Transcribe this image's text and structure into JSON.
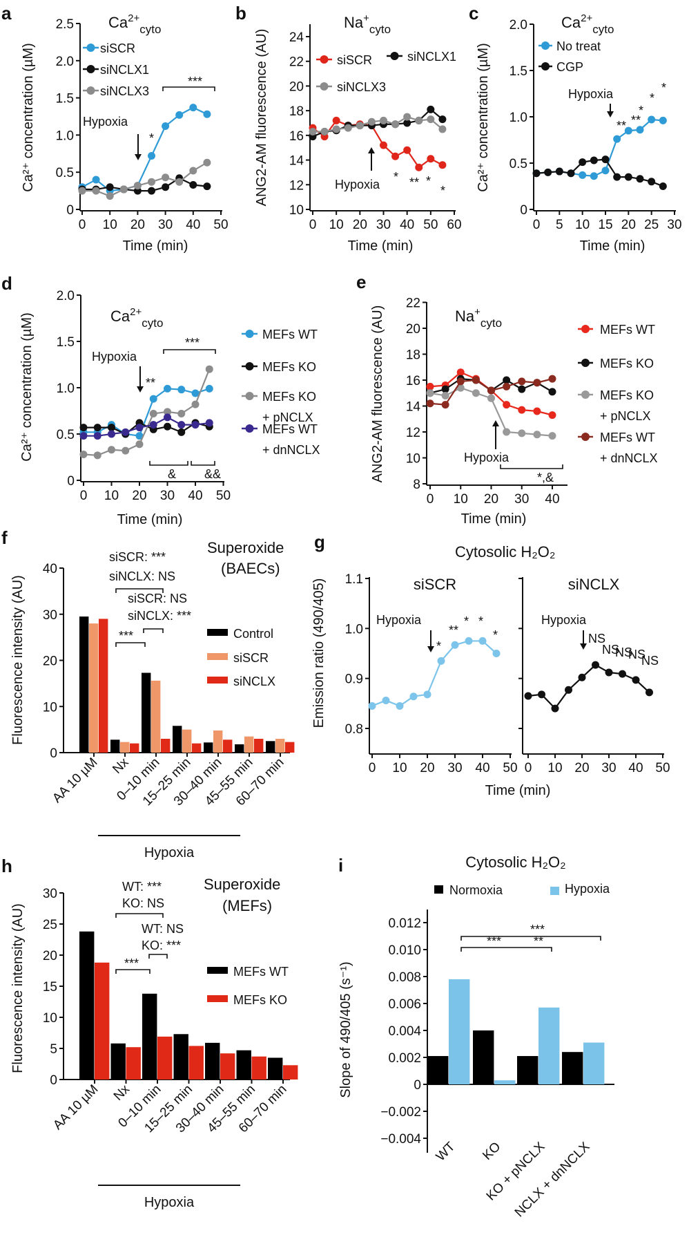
{
  "chart_data": [
    {
      "panel_label": "a",
      "type": "line",
      "title": {
        "base": "Ca",
        "sup": "2+",
        "sub": "cyto"
      },
      "xlabel": "Time (min)",
      "ylabel": "Ca²⁺ concentration (µM)",
      "xlim": [
        0,
        50
      ],
      "ylim": [
        0,
        2.5
      ],
      "xticks": [
        0,
        10,
        20,
        30,
        40,
        50
      ],
      "yticks": [
        0,
        0.5,
        1.0,
        1.5,
        2.0,
        2.5
      ],
      "ytick_labels": [
        "0",
        "0.5",
        "1.0",
        "1.5",
        "2.0",
        "2.5"
      ],
      "x": [
        0,
        5,
        10,
        15,
        20,
        25,
        30,
        35,
        40,
        45
      ],
      "series": [
        {
          "name": "siSCR",
          "color": "#2e9ad6",
          "values": [
            0.3,
            0.4,
            0.25,
            0.27,
            0.32,
            0.72,
            1.12,
            1.27,
            1.37,
            1.28
          ]
        },
        {
          "name": "siNCLX1",
          "color": "#111111",
          "values": [
            0.27,
            0.27,
            0.3,
            0.27,
            0.25,
            0.25,
            0.3,
            0.42,
            0.33,
            0.31
          ]
        },
        {
          "name": "siNCLX3",
          "color": "#8c8c8c",
          "values": [
            0.25,
            0.25,
            0.18,
            0.27,
            0.32,
            0.37,
            0.43,
            0.37,
            0.52,
            0.63
          ]
        }
      ],
      "annotations": [
        "Hypoxia",
        "*",
        "***"
      ]
    },
    {
      "panel_label": "b",
      "type": "line",
      "title": {
        "base": "Na",
        "sup": "+",
        "sub": "cyto"
      },
      "xlabel": "Time (min)",
      "ylabel": "ANG2-AM fluorescence (AU)",
      "xlim": [
        0,
        60
      ],
      "ylim": [
        10,
        24
      ],
      "xticks": [
        0,
        10,
        20,
        30,
        40,
        50,
        60
      ],
      "yticks": [
        10,
        12,
        14,
        16,
        18,
        20,
        22,
        24
      ],
      "ytick_labels": [
        "10",
        "12",
        "14",
        "16",
        "18",
        "20",
        "22",
        "24"
      ],
      "x": [
        0,
        5,
        10,
        15,
        20,
        25,
        30,
        35,
        40,
        45,
        50,
        55
      ],
      "series": [
        {
          "name": "siSCR",
          "color": "#e0261b",
          "values": [
            16.6,
            15.9,
            17.2,
            16.8,
            16.9,
            16.8,
            15.2,
            14.3,
            14.8,
            13.4,
            14.1,
            13.6
          ]
        },
        {
          "name": "siNCLX1",
          "color": "#111111",
          "values": [
            15.9,
            16.3,
            16.4,
            16.8,
            16.8,
            16.8,
            16.9,
            16.9,
            17.0,
            17.2,
            18.1,
            17.3
          ]
        },
        {
          "name": "siNCLX3",
          "color": "#8c8c8c",
          "values": [
            16.3,
            16.3,
            16.5,
            16.6,
            16.8,
            17.1,
            17.2,
            16.9,
            17.5,
            17.2,
            17.3,
            16.5
          ]
        }
      ],
      "annotations": [
        "Hypoxia",
        "*",
        "**",
        "*",
        "*"
      ]
    },
    {
      "panel_label": "c",
      "type": "line",
      "title": {
        "base": "Ca",
        "sup": "2+",
        "sub": "cyto"
      },
      "xlabel": "Time (min)",
      "ylabel": "Ca²⁺ concentration (µM)",
      "xlim": [
        0,
        30
      ],
      "ylim": [
        0,
        2.0
      ],
      "xticks": [
        0,
        5,
        10,
        15,
        20,
        25,
        30
      ],
      "yticks": [
        0,
        0.5,
        1.0,
        1.5,
        2.0
      ],
      "ytick_labels": [
        "0",
        "0.5",
        "1.0",
        "1.5",
        "2.0"
      ],
      "x": [
        0,
        2.5,
        5,
        7.5,
        10,
        12.5,
        15,
        17.5,
        20,
        22.5,
        25,
        27.5
      ],
      "series": [
        {
          "name": "No treat",
          "color": "#2e9ad6",
          "values": [
            0.39,
            0.4,
            0.41,
            0.39,
            0.37,
            0.36,
            0.42,
            0.76,
            0.85,
            0.86,
            0.97,
            0.96
          ]
        },
        {
          "name": "CGP",
          "color": "#111111",
          "values": [
            0.39,
            0.4,
            0.41,
            0.39,
            0.51,
            0.53,
            0.54,
            0.35,
            0.35,
            0.33,
            0.3,
            0.25
          ]
        }
      ],
      "annotations": [
        "Hypoxia",
        "**",
        "**",
        "*",
        "*",
        "*"
      ]
    },
    {
      "panel_label": "d",
      "type": "line",
      "title": {
        "base": "Ca",
        "sup": "2+",
        "sub": "cyto"
      },
      "xlabel": "Time (min)",
      "ylabel": "Ca²⁺ concentration (µM)",
      "xlim": [
        0,
        50
      ],
      "ylim": [
        0,
        2.0
      ],
      "xticks": [
        0,
        10,
        20,
        30,
        40,
        50
      ],
      "yticks": [
        0,
        0.5,
        1.0,
        1.5,
        2.0
      ],
      "ytick_labels": [
        "0",
        "0.5",
        "1.0",
        "1.5",
        "2.0"
      ],
      "x": [
        0,
        5,
        10,
        15,
        20,
        25,
        30,
        35,
        40,
        45
      ],
      "series": [
        {
          "name": "MEFs WT",
          "color": "#2e9ad6",
          "values": [
            0.52,
            0.52,
            0.6,
            0.5,
            0.48,
            0.88,
            0.99,
            0.98,
            0.94,
            0.99
          ]
        },
        {
          "name": "MEFs KO",
          "color": "#111111",
          "values": [
            0.57,
            0.57,
            0.57,
            0.5,
            0.62,
            0.55,
            0.58,
            0.52,
            0.62,
            0.58
          ]
        },
        {
          "name": "MEFs KO",
          "name2": "+ pNCLX",
          "color": "#8c8c8c",
          "values": [
            0.28,
            0.27,
            0.33,
            0.32,
            0.39,
            0.72,
            0.74,
            0.72,
            0.82,
            1.2
          ]
        },
        {
          "name": "MEFs WT",
          "name2": "+ dnNCLX",
          "color": "#3a2a8f",
          "values": [
            0.48,
            0.48,
            0.5,
            0.52,
            0.57,
            0.6,
            0.68,
            0.6,
            0.6,
            0.62
          ]
        }
      ],
      "annotations": [
        "Hypoxia",
        "**",
        "***",
        "&",
        "&&"
      ]
    },
    {
      "panel_label": "e",
      "type": "line",
      "title": {
        "base": "Na",
        "sup": "+",
        "sub": "cyto"
      },
      "xlabel": "Time (min)",
      "ylabel": "ANG2-AM fluorescence (AU)",
      "xlim": [
        0,
        40
      ],
      "ylim": [
        8,
        22
      ],
      "xticks": [
        0,
        10,
        20,
        30,
        40
      ],
      "yticks": [
        8,
        10,
        12,
        14,
        16,
        18,
        20,
        22
      ],
      "ytick_labels": [
        "8",
        "10",
        "12",
        "14",
        "16",
        "18",
        "20",
        "22"
      ],
      "x": [
        0,
        5,
        10,
        15,
        20,
        25,
        30,
        35,
        40
      ],
      "series": [
        {
          "name": "MEFs WT",
          "color": "#e8281c",
          "values": [
            15.5,
            15.6,
            16.6,
            16.1,
            15.2,
            14.1,
            13.7,
            13.6,
            13.3
          ]
        },
        {
          "name": "MEFs KO",
          "color": "#111111",
          "values": [
            15.0,
            15.3,
            16.1,
            16.0,
            15.2,
            16.0,
            15.3,
            15.8,
            15.1
          ]
        },
        {
          "name": "MEFs KO",
          "name2": "+ pNCLX",
          "color": "#999999",
          "values": [
            15.0,
            14.8,
            15.4,
            15.0,
            14.6,
            12.0,
            11.9,
            11.8,
            11.7
          ]
        },
        {
          "name": "MEFs WT",
          "name2": "+ dnNCLX",
          "color": "#8b2a1f",
          "values": [
            14.2,
            14.1,
            15.9,
            16.0,
            15.2,
            15.5,
            15.9,
            15.8,
            16.1
          ]
        }
      ],
      "annotations": [
        "Hypoxia",
        "*,&"
      ]
    },
    {
      "panel_label": "f",
      "type": "bar",
      "title_lines": [
        "Superoxide",
        "(BAECs)"
      ],
      "xlabel": "",
      "ylabel": "Fluorescence intensity (AU)",
      "ylim": [
        0,
        40
      ],
      "yticks": [
        0,
        10,
        20,
        30,
        40
      ],
      "ytick_labels": [
        "0",
        "10",
        "20",
        "30",
        "40"
      ],
      "categories": [
        "AA 10 µM",
        "Nx",
        "0–10 min",
        "15–25 min",
        "30–40 min",
        "45–55 min",
        "60–70 min"
      ],
      "group_label": "Hypoxia",
      "series": [
        {
          "name": "Control",
          "color": "#000000",
          "values": [
            29.5,
            2.8,
            17.3,
            5.8,
            2.2,
            1.8,
            2.5
          ]
        },
        {
          "name": "siSCR",
          "color": "#f0976a",
          "values": [
            28.0,
            2.3,
            15.6,
            5.0,
            4.8,
            3.5,
            3.0
          ]
        },
        {
          "name": "siNCLX",
          "color": "#e02a17",
          "values": [
            29.0,
            2.0,
            3.0,
            2.0,
            2.8,
            3.0,
            2.3
          ]
        }
      ],
      "annotations": [
        "siSCR: ***",
        "siNCLX: NS",
        "siSCR: NS",
        "siNCLX: ***",
        "***"
      ]
    },
    {
      "panel_label": "g",
      "type": "line",
      "supertitle": "Cytosolic H₂O₂",
      "title": "siSCR",
      "xlabel": "Time (min)",
      "ylabel": "Emission ratio (490/405)",
      "xlim": [
        0,
        50
      ],
      "ylim": [
        0.8,
        1.1
      ],
      "xticks": [
        0,
        10,
        20,
        30,
        40,
        50
      ],
      "yticks": [
        0.8,
        0.9,
        1.0,
        1.1
      ],
      "ytick_labels": [
        "0.8",
        "0.9",
        "1.0",
        "1.1"
      ],
      "x": [
        0,
        5,
        10,
        15,
        20,
        25,
        30,
        35,
        40,
        45
      ],
      "series": [
        {
          "name": "siSCR",
          "color": "#7cc4ea",
          "values": [
            0.845,
            0.856,
            0.845,
            0.864,
            0.868,
            0.935,
            0.967,
            0.975,
            0.975,
            0.95
          ]
        }
      ],
      "annotations": [
        "Hypoxia",
        "*",
        "**",
        "*",
        "*",
        "*"
      ]
    },
    {
      "type": "line",
      "title": "siNCLX",
      "xlim": [
        0,
        50
      ],
      "ylim": [
        0.8,
        1.1
      ],
      "xticks": [
        0,
        10,
        20,
        30,
        40,
        50
      ],
      "yticks": [
        0.8,
        0.9,
        1.0,
        1.1
      ],
      "x": [
        0,
        5,
        10,
        15,
        20,
        25,
        30,
        35,
        40,
        45
      ],
      "series": [
        {
          "name": "siNCLX",
          "color": "#111111",
          "values": [
            0.865,
            0.868,
            0.84,
            0.877,
            0.902,
            0.927,
            0.912,
            0.909,
            0.897,
            0.872
          ]
        }
      ],
      "annotations": [
        "Hypoxia",
        "NS",
        "NS",
        "NS",
        "NS",
        "NS"
      ]
    },
    {
      "panel_label": "h",
      "type": "bar",
      "title_lines": [
        "Superoxide",
        "(MEFs)"
      ],
      "xlabel": "",
      "ylabel": "Fluorescence intensity (AU)",
      "ylim": [
        0,
        30
      ],
      "yticks": [
        0,
        5,
        10,
        15,
        20,
        25,
        30
      ],
      "ytick_labels": [
        "0",
        "5",
        "10",
        "15",
        "20",
        "25",
        "30"
      ],
      "categories": [
        "AA 10 µM",
        "Nx",
        "0–10 min",
        "15–25 min",
        "30–40 min",
        "45–55 min",
        "60–70 min"
      ],
      "group_label": "Hypoxia",
      "series": [
        {
          "name": "MEFs WT",
          "color": "#000000",
          "values": [
            23.8,
            5.8,
            13.8,
            7.3,
            5.9,
            4.7,
            3.5
          ]
        },
        {
          "name": "MEFs KO",
          "color": "#e02a17",
          "values": [
            18.8,
            5.2,
            6.9,
            5.4,
            4.2,
            3.7,
            2.3
          ]
        }
      ],
      "annotations": [
        "WT: ***",
        "KO: NS",
        "WT: NS",
        "KO: ***",
        "***"
      ]
    },
    {
      "panel_label": "i",
      "type": "bar",
      "title": "Cytosolic H₂O₂",
      "xlabel": "",
      "ylabel": "Slope of 490/405 (s⁻¹)",
      "ylim": [
        -0.0045,
        0.013
      ],
      "yticks": [
        -0.004,
        -0.002,
        0,
        0.002,
        0.004,
        0.006,
        0.008,
        0.01,
        0.012
      ],
      "ytick_labels": [
        "−0.004",
        "−0.002",
        "0",
        "0.002",
        "0.004",
        "0.006",
        "0.008",
        "0.010",
        "0.012"
      ],
      "categories": [
        "WT",
        "KO",
        "KO + pNCLX",
        "NCLX + dnNCLX"
      ],
      "series": [
        {
          "name": "Normoxia",
          "color": "#000000",
          "values": [
            0.0021,
            0.004,
            0.0021,
            0.0024
          ]
        },
        {
          "name": "Hypoxia",
          "color": "#7cc3ea",
          "values": [
            0.0078,
            0.0003,
            0.0057,
            0.0031
          ]
        }
      ],
      "annotations": [
        "***",
        "***",
        "**"
      ]
    }
  ]
}
